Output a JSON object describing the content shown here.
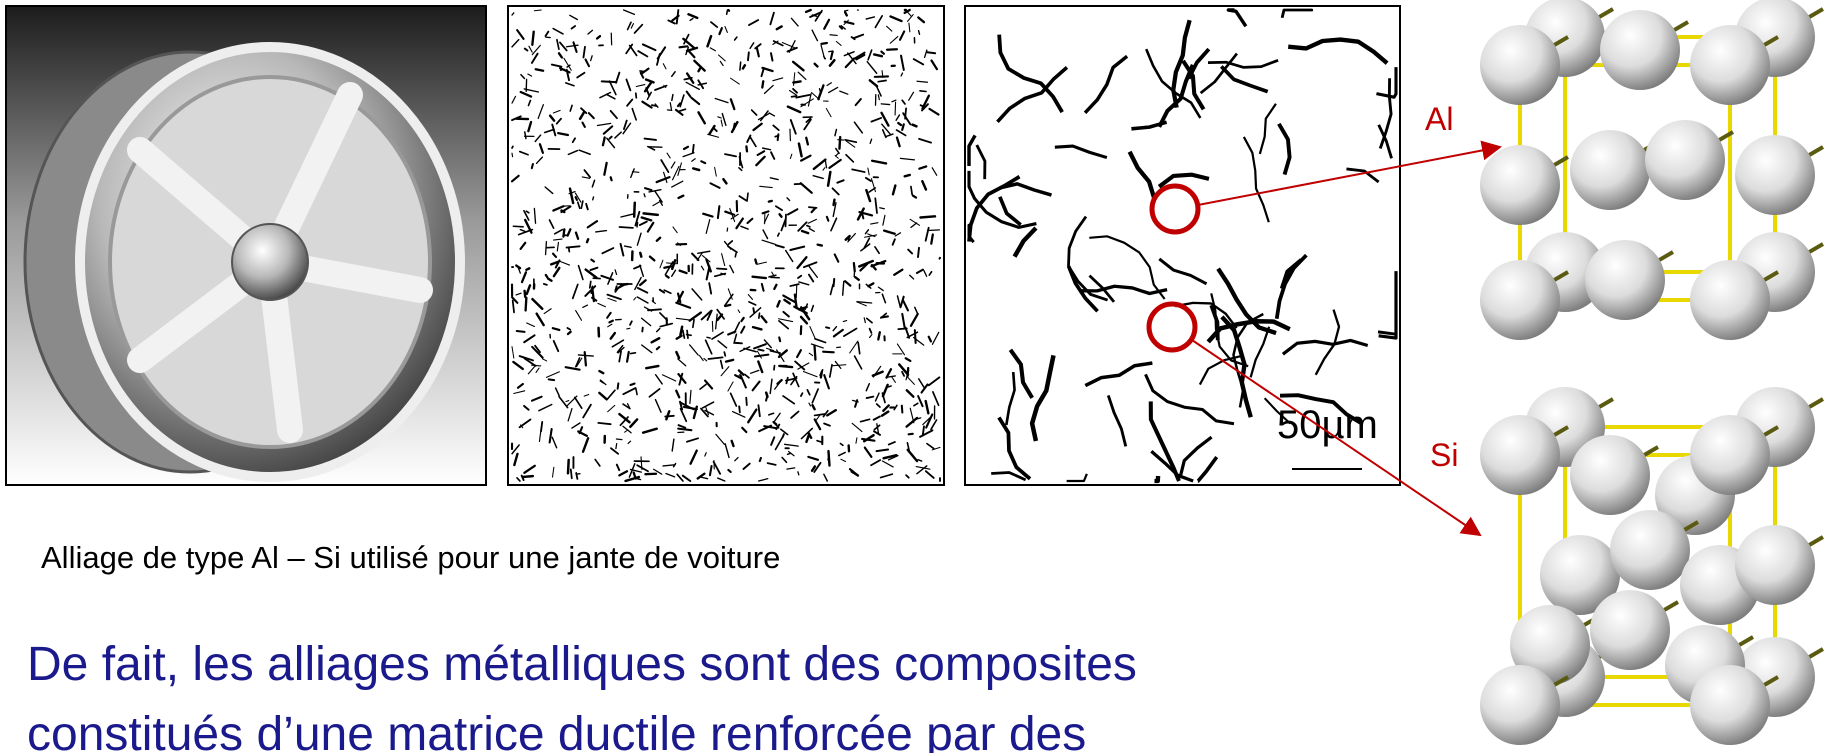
{
  "labels": {
    "al": "Al",
    "si": "Si",
    "scale": "50µm"
  },
  "caption": "Alliage de type Al – Si utilisé pour une jante de voiture",
  "body": {
    "lines": [
      "De fait, les alliages métalliques sont des composites",
      "constitués d’une matrice ductile renforcée par des"
    ]
  }
}
